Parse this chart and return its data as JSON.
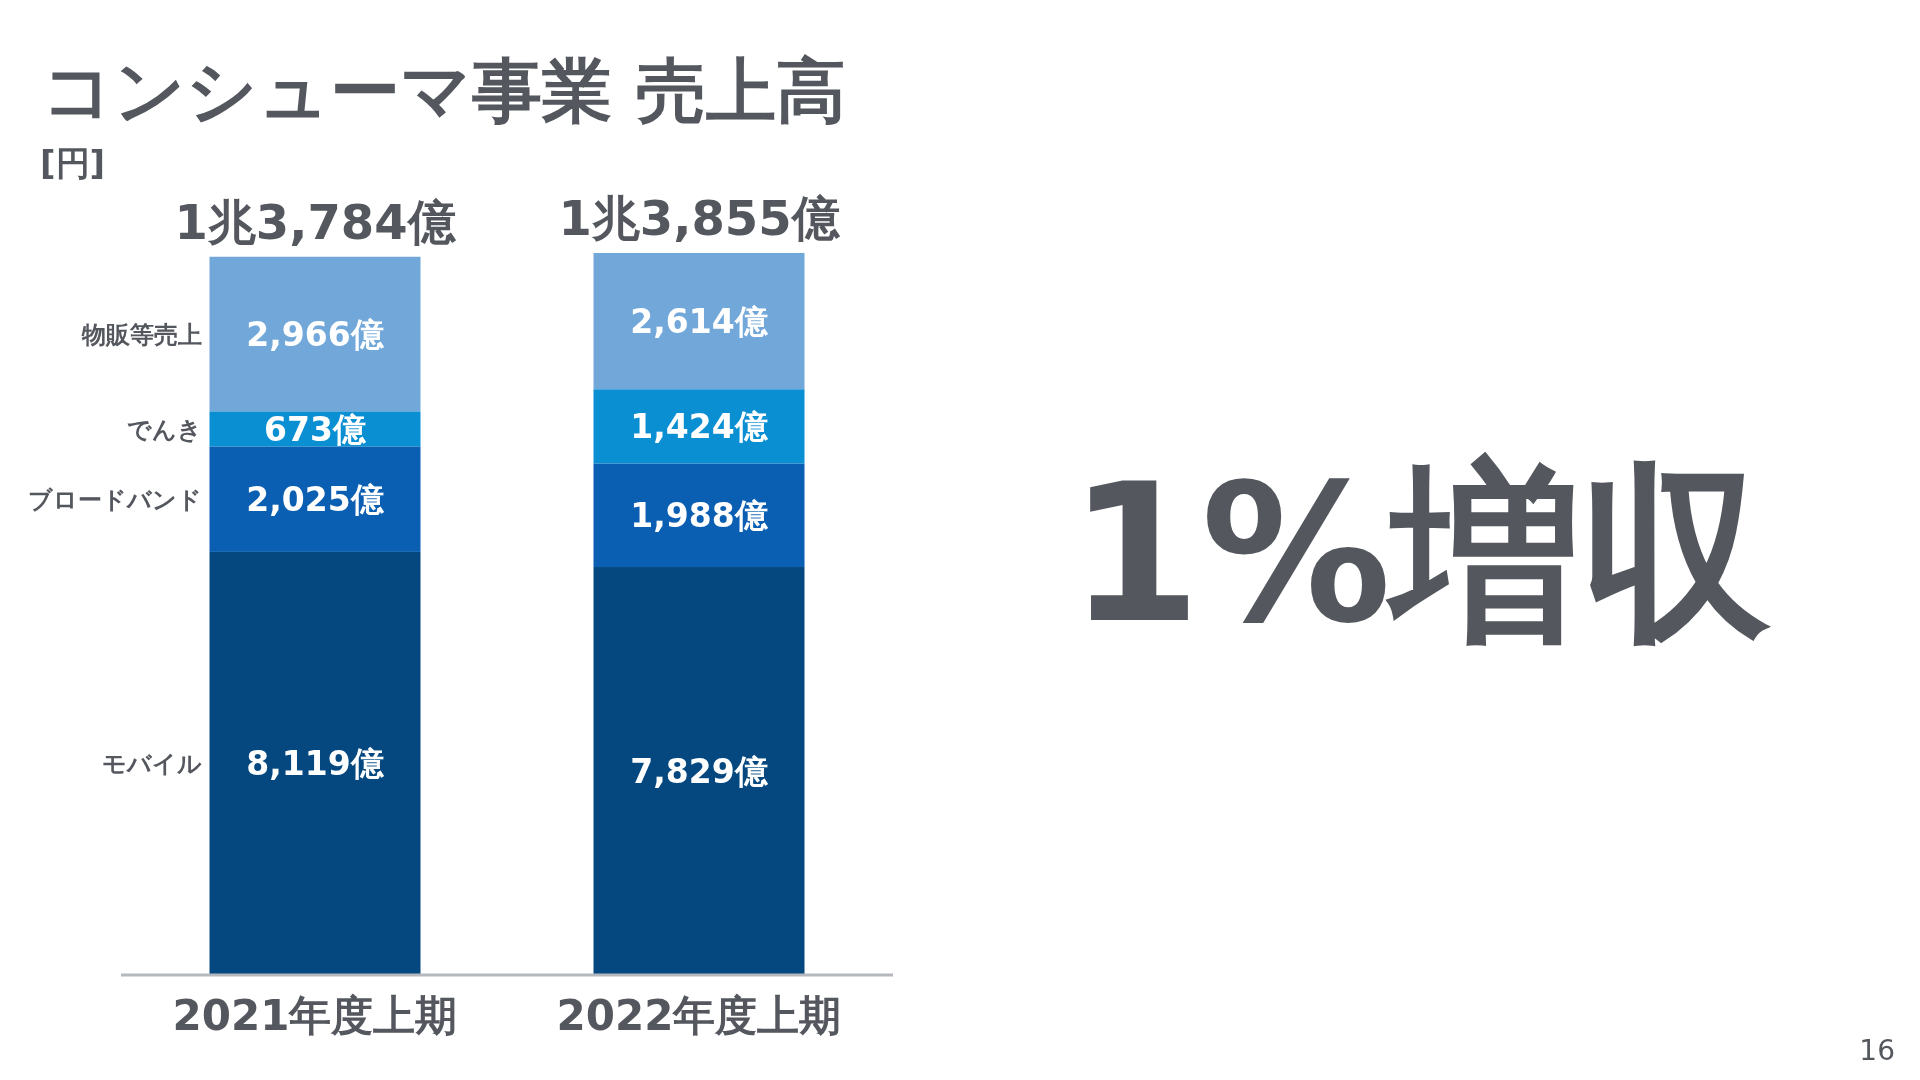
{
  "chart_data": {
    "type": "bar",
    "stacked": true,
    "title": "コンシューマ事業 売上高",
    "ylabel": "[円]",
    "categories": [
      "2021年度上期",
      "2022年度上期"
    ],
    "series": [
      {
        "name": "モバイル",
        "color": "#04487f",
        "values": [
          8119,
          7829
        ],
        "value_labels": [
          "8,119億",
          "7,829億"
        ]
      },
      {
        "name": "ブロードバンド",
        "color": "#0a5fb2",
        "values": [
          2025,
          1988
        ],
        "value_labels": [
          "2,025億",
          "1,988億"
        ]
      },
      {
        "name": "でんき",
        "color": "#0b8fd3",
        "values": [
          673,
          1424
        ],
        "value_labels": [
          "673億",
          "1,424億"
        ]
      },
      {
        "name": "物販等売上",
        "color": "#72a8d9",
        "values": [
          2966,
          2614
        ],
        "value_labels": [
          "2,966億",
          "2,614億"
        ]
      }
    ],
    "totals": [
      "1兆3,784億",
      "1兆3,855億"
    ],
    "annotations": [
      "1%増収",
      "16"
    ]
  }
}
